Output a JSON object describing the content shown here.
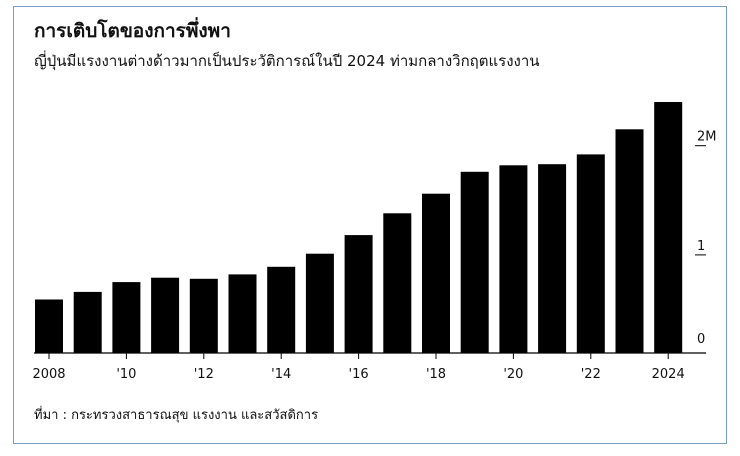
{
  "header": {
    "title": "การเติบโตของการพึ่งพา",
    "subtitle": "ญี่ปุ่นมีแรงงานต่างด้าวมากเป็นประวัติการณ์ในปี 2024 ท่ามกลางวิกฤตแรงงาน"
  },
  "footer": {
    "source": "ที่มา : กระทรวงสาธารณสุข แรงงาน และสวัสดิการ"
  },
  "colors": {
    "bar": "#000000",
    "axis": "#000000",
    "frame": "#7a9cc6"
  },
  "chart_data": {
    "type": "bar",
    "categories": [
      "2008",
      "2009",
      "2010",
      "2011",
      "2012",
      "2013",
      "2014",
      "2015",
      "2016",
      "2017",
      "2018",
      "2019",
      "2020",
      "2021",
      "2022",
      "2023",
      "2024"
    ],
    "values": [
      0.49,
      0.56,
      0.65,
      0.69,
      0.68,
      0.72,
      0.79,
      0.91,
      1.08,
      1.28,
      1.46,
      1.66,
      1.72,
      1.73,
      1.82,
      2.05,
      2.3
    ],
    "x_tick_labels": [
      {
        "category": "2008",
        "label": "2008"
      },
      {
        "category": "2010",
        "label": "'10"
      },
      {
        "category": "2012",
        "label": "'12"
      },
      {
        "category": "2014",
        "label": "'14"
      },
      {
        "category": "2016",
        "label": "'16"
      },
      {
        "category": "2018",
        "label": "'18"
      },
      {
        "category": "2020",
        "label": "'20"
      },
      {
        "category": "2022",
        "label": "'22"
      },
      {
        "category": "2024",
        "label": "2024"
      }
    ],
    "y_ticks": [
      {
        "value": 0,
        "label": "0"
      },
      {
        "value": 1,
        "label": "1"
      },
      {
        "value": 2,
        "label": "2M"
      }
    ],
    "ylim": [
      0,
      2.3
    ],
    "y_axis_position": "right",
    "grid": false
  }
}
